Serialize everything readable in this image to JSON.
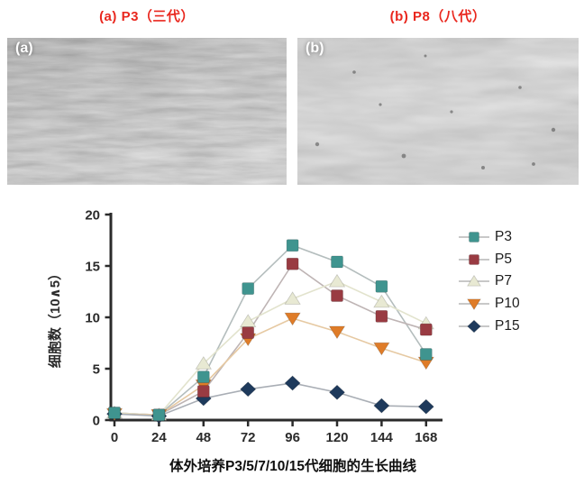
{
  "panels": {
    "a": {
      "title": "(a) P3（三代）",
      "corner_label": "(a)"
    },
    "b": {
      "title": "(b) P8（八代）",
      "corner_label": "(b)"
    }
  },
  "chart_data": {
    "type": "line",
    "x": [
      0,
      24,
      48,
      72,
      96,
      120,
      144,
      168
    ],
    "xlim": [
      0,
      168
    ],
    "ylim": [
      0,
      20
    ],
    "yticks": [
      0,
      5,
      10,
      15,
      20
    ],
    "ylabel": "细胞数（10∧5）",
    "xlabel": "",
    "grid": false,
    "legend_position": "right",
    "series": [
      {
        "name": "P3",
        "marker": "square",
        "color": "#3f948f",
        "line_color": "#b4bdbd",
        "values": [
          0.7,
          0.5,
          4.2,
          12.8,
          17.0,
          15.4,
          13.0,
          6.4
        ]
      },
      {
        "name": "P5",
        "marker": "square",
        "color": "#993b42",
        "line_color": "#beb4b4",
        "values": [
          0.7,
          0.5,
          2.8,
          8.5,
          15.2,
          12.1,
          10.1,
          8.8
        ]
      },
      {
        "name": "P7",
        "marker": "triangle-up",
        "color": "#e8e9d3",
        "line_color": "#e2e3cd",
        "values": [
          0.7,
          0.5,
          5.5,
          9.6,
          11.8,
          13.5,
          11.5,
          9.4
        ]
      },
      {
        "name": "P10",
        "marker": "triangle-down",
        "color": "#df7c28",
        "line_color": "#e6c9a2",
        "values": [
          0.6,
          0.5,
          3.4,
          7.9,
          9.9,
          8.6,
          7.0,
          5.6
        ]
      },
      {
        "name": "P15",
        "marker": "diamond",
        "color": "#1e3a5c",
        "line_color": "#a9aeb5",
        "values": [
          0.6,
          0.4,
          2.1,
          3.0,
          3.6,
          2.7,
          1.4,
          1.3
        ]
      }
    ]
  },
  "caption": "体外培养P3/5/7/10/15代细胞的生长曲线",
  "colors": {
    "title_red": "#e9271e",
    "axis": "#2b2b2b"
  }
}
